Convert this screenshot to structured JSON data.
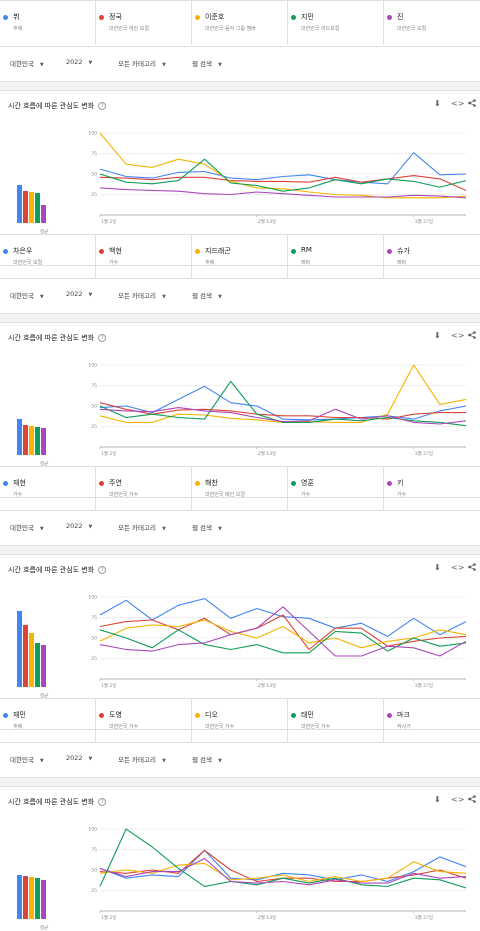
{
  "colors": {
    "series": [
      "#4285f4",
      "#db4437",
      "#f4b400",
      "#0f9d58",
      "#ab47bc"
    ],
    "grid": "#e0e0e0",
    "axis": "#9e9e9e",
    "muted": "#80868b"
  },
  "icons": {
    "help": "?",
    "download": "⬇",
    "embed": "<>",
    "share": "share-icon"
  },
  "filters": {
    "region": "대한민국",
    "year": "2022",
    "category": "모든 카테고리",
    "search_type": "웹 검색"
  },
  "panel_title": "시간 흐름에 따른 관심도 변화",
  "avg_label": "평균",
  "y_ticks": [
    "100",
    "75",
    "50",
    "25"
  ],
  "x_ticks": [
    "1월 2일",
    "2월 13일",
    "3월 27일"
  ],
  "comparisons": [
    {
      "legend": [
        {
          "name": "뷔",
          "sub": "주제"
        },
        {
          "name": "정국",
          "sub": "대한민국 에인 보컬"
        },
        {
          "name": "이준호",
          "sub": "대한민국 음악 그룹 멤버"
        },
        {
          "name": "지민",
          "sub": "대한민국 리드보컬"
        },
        {
          "name": "진",
          "sub": "대한민국 보컬"
        }
      ],
      "chart_data": {
        "type": "line",
        "x": [
          "1월 2일",
          "1월 9일",
          "1월 16일",
          "1월 23일",
          "1월 30일",
          "2월 6일",
          "2월 13일",
          "2월 20일",
          "2월 27일",
          "3월 6일",
          "3월 13일",
          "3월 20일",
          "3월 27일",
          "4월 3일",
          "4월 10일"
        ],
        "ylim": [
          0,
          100
        ],
        "averages": [
          38,
          32,
          31,
          30,
          18
        ],
        "series": [
          {
            "name": "뷔",
            "values": [
              56,
              47,
              45,
              52,
              53,
              45,
              43,
              47,
              49,
              43,
              40,
              38,
              76,
              49,
              50
            ]
          },
          {
            "name": "정국",
            "values": [
              46,
              45,
              43,
              46,
              46,
              42,
              41,
              41,
              40,
              46,
              40,
              44,
              48,
              44,
              30
            ]
          },
          {
            "name": "이준호",
            "values": [
              100,
              62,
              58,
              68,
              62,
              41,
              33,
              32,
              28,
              25,
              24,
              21,
              21,
              21,
              23
            ]
          },
          {
            "name": "지민",
            "values": [
              50,
              40,
              38,
              42,
              68,
              39,
              36,
              29,
              33,
              43,
              38,
              44,
              41,
              34,
              42
            ]
          },
          {
            "name": "진",
            "values": [
              33,
              31,
              30,
              29,
              26,
              25,
              28,
              26,
              24,
              22,
              22,
              22,
              24,
              23,
              21
            ]
          }
        ]
      }
    },
    {
      "legend": [
        {
          "name": "차은우",
          "sub": "대한민국 보컬"
        },
        {
          "name": "백현",
          "sub": "가수"
        },
        {
          "name": "지드래곤",
          "sub": "주제"
        },
        {
          "name": "RM",
          "sub": "래퍼"
        },
        {
          "name": "슈가",
          "sub": "래퍼"
        }
      ],
      "chart_data": {
        "type": "line",
        "x": [
          "1월 2일",
          "1월 9일",
          "1월 16일",
          "1월 23일",
          "1월 30일",
          "2월 6일",
          "2월 13일",
          "2월 20일",
          "2월 27일",
          "3월 6일",
          "3월 13일",
          "3월 20일",
          "3월 27일",
          "4월 3일",
          "4월 10일"
        ],
        "ylim": [
          0,
          100
        ],
        "averages": [
          36,
          30,
          29,
          28,
          27
        ],
        "series": [
          {
            "name": "차은우",
            "values": [
              48,
              50,
              42,
              58,
              74,
              54,
              50,
              34,
              33,
              34,
              36,
              38,
              34,
              44,
              50
            ]
          },
          {
            "name": "백현",
            "values": [
              54,
              46,
              40,
              45,
              46,
              44,
              40,
              38,
              38,
              36,
              36,
              34,
              40,
              42,
              42
            ]
          },
          {
            "name": "지드래곤",
            "values": [
              38,
              30,
              30,
              40,
              39,
              35,
              33,
              30,
              31,
              30,
              30,
              40,
              100,
              52,
              58
            ]
          },
          {
            "name": "RM",
            "values": [
              50,
              36,
              40,
              36,
              34,
              80,
              40,
              30,
              30,
              34,
              32,
              36,
              32,
              30,
              26
            ]
          },
          {
            "name": "슈가",
            "values": [
              46,
              44,
              43,
              48,
              44,
              42,
              36,
              31,
              32,
              46,
              34,
              38,
              30,
              28,
              32
            ]
          }
        ]
      }
    },
    {
      "legend": [
        {
          "name": "재현",
          "sub": "가수"
        },
        {
          "name": "주연",
          "sub": "대한민국 가수"
        },
        {
          "name": "해찬",
          "sub": "대한민국 메인 보컬"
        },
        {
          "name": "영훈",
          "sub": "가수"
        },
        {
          "name": "키",
          "sub": "가수"
        }
      ],
      "chart_data": {
        "type": "line",
        "x": [
          "1월 2일",
          "1월 9일",
          "1월 16일",
          "1월 23일",
          "1월 30일",
          "2월 6일",
          "2월 13일",
          "2월 20일",
          "2월 27일",
          "3월 6일",
          "3월 13일",
          "3월 20일",
          "3월 27일",
          "4월 3일",
          "4월 10일"
        ],
        "ylim": [
          0,
          100
        ],
        "averages": [
          76,
          62,
          54,
          44,
          42
        ],
        "series": [
          {
            "name": "재현",
            "values": [
              78,
              96,
              72,
              90,
              98,
              74,
              86,
              76,
              74,
              62,
              68,
              52,
              74,
              54,
              70
            ]
          },
          {
            "name": "주연",
            "values": [
              64,
              70,
              72,
              60,
              74,
              54,
              62,
              78,
              36,
              62,
              62,
              40,
              46,
              50,
              52
            ]
          },
          {
            "name": "해찬",
            "values": [
              46,
              62,
              66,
              64,
              72,
              58,
              50,
              64,
              44,
              50,
              38,
              46,
              50,
              60,
              54
            ]
          },
          {
            "name": "영훈",
            "values": [
              60,
              50,
              38,
              60,
              42,
              36,
              42,
              32,
              32,
              58,
              56,
              34,
              50,
              40,
              44
            ]
          },
          {
            "name": "키",
            "values": [
              42,
              36,
              34,
              42,
              44,
              54,
              62,
              88,
              58,
              28,
              28,
              40,
              38,
              28,
              46
            ]
          }
        ]
      }
    },
    {
      "legend": [
        {
          "name": "재민",
          "sub": "주제"
        },
        {
          "name": "도영",
          "sub": "대한민국 가수"
        },
        {
          "name": "디오",
          "sub": "대한민국 가수"
        },
        {
          "name": "태민",
          "sub": "대한민국 가수"
        },
        {
          "name": "마크",
          "sub": "작사가"
        }
      ],
      "chart_data": {
        "type": "line",
        "x": [
          "1월 2일",
          "1월 9일",
          "1월 16일",
          "1월 23일",
          "1월 30일",
          "2월 6일",
          "2월 13일",
          "2월 20일",
          "2월 27일",
          "3월 6일",
          "3월 13일",
          "3월 20일",
          "3월 27일",
          "4월 3일",
          "4월 10일"
        ],
        "ylim": [
          0,
          100
        ],
        "averages": [
          44,
          43,
          42,
          41,
          39
        ],
        "series": [
          {
            "name": "재민",
            "values": [
              52,
              40,
              44,
              42,
              74,
              40,
              38,
              46,
              44,
              38,
              44,
              36,
              48,
              66,
              54
            ]
          },
          {
            "name": "도영",
            "values": [
              48,
              46,
              50,
              46,
              74,
              50,
              36,
              40,
              40,
              36,
              36,
              40,
              44,
              50,
              40
            ]
          },
          {
            "name": "디오",
            "values": [
              46,
              50,
              46,
              56,
              58,
              38,
              40,
              44,
              36,
              42,
              36,
              40,
              60,
              48,
              46
            ]
          },
          {
            "name": "태민",
            "values": [
              30,
              100,
              78,
              52,
              30,
              36,
              32,
              40,
              34,
              40,
              32,
              30,
              40,
              38,
              28
            ]
          },
          {
            "name": "마크",
            "values": [
              52,
              42,
              48,
              48,
              64,
              36,
              34,
              36,
              32,
              38,
              34,
              34,
              46,
              40,
              42
            ]
          }
        ]
      }
    }
  ]
}
